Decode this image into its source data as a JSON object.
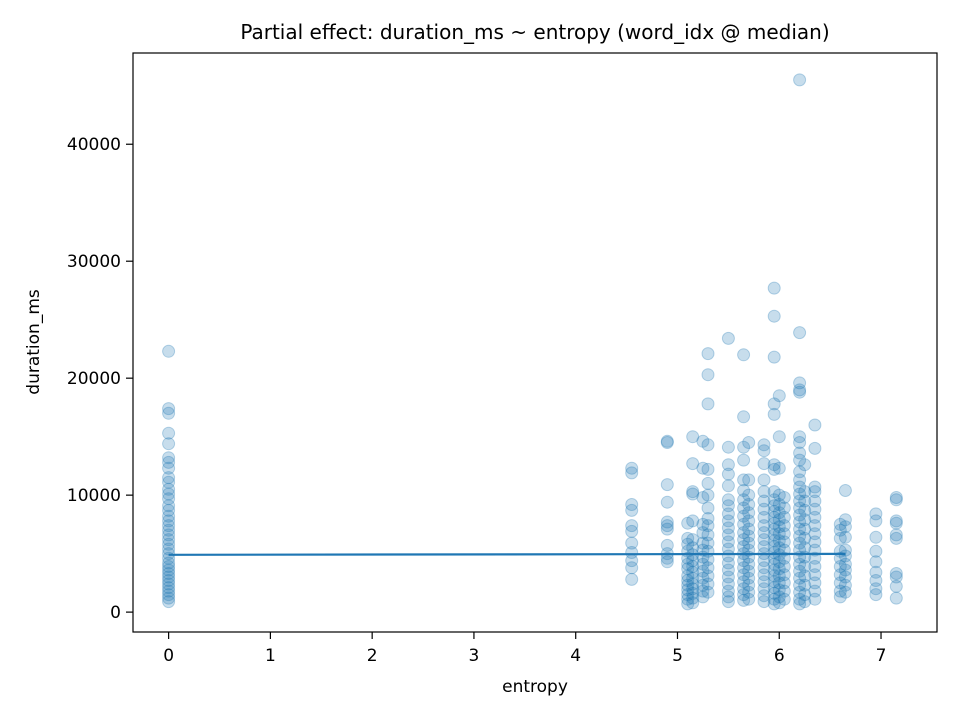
{
  "chart_data": {
    "type": "scatter",
    "title": "Partial effect: duration_ms ~ entropy (word_idx @ median)",
    "xlabel": "entropy",
    "ylabel": "duration_ms",
    "xlim": [
      -0.35,
      7.55
    ],
    "ylim": [
      -1700,
      47800
    ],
    "xticks": [
      "0",
      "1",
      "2",
      "3",
      "4",
      "5",
      "6",
      "7"
    ],
    "yticks": [
      "0",
      "10000",
      "20000",
      "30000",
      "40000"
    ],
    "grid": false,
    "colors": {
      "points": "#1f77b4",
      "fit_line": "#1f77b4"
    },
    "fit_line": {
      "x": [
        0,
        6.65
      ],
      "y": [
        4900,
        4980
      ]
    },
    "columns": [
      {
        "x": 0.0,
        "y": [
          22300,
          17400,
          17000,
          15300,
          14400,
          13200,
          12800,
          12300,
          11500,
          11100,
          10500,
          10100,
          9700,
          9100,
          8700,
          8200,
          7800,
          7400,
          7000,
          6600,
          6200,
          5800,
          5400,
          5000,
          4600,
          4200,
          3900,
          3600,
          3300,
          3000,
          2700,
          2400,
          2100,
          1800,
          1500,
          1200,
          900
        ]
      },
      {
        "x": 4.55,
        "y": [
          12300,
          11900,
          9200,
          8700,
          7400,
          6900,
          5900,
          5100,
          4400,
          3800,
          2800
        ]
      },
      {
        "x": 4.9,
        "y": [
          14600,
          14500,
          10900,
          9400,
          7700,
          7400,
          7100,
          5700,
          5000,
          4600,
          4300
        ]
      },
      {
        "x": 5.1,
        "y": [
          7600,
          6300,
          5800,
          5200,
          4600,
          4100,
          3700,
          3100,
          2700,
          2300,
          1900,
          1500,
          1100,
          700
        ]
      },
      {
        "x": 5.15,
        "y": [
          15000,
          12700,
          10300,
          10100,
          7800,
          6200,
          5500,
          4900,
          4400,
          3900,
          3400,
          2900,
          2400,
          2000,
          1600,
          1200,
          800
        ]
      },
      {
        "x": 5.25,
        "y": [
          14600,
          12300,
          9800,
          7500,
          6800,
          5900,
          5300,
          4700,
          4100,
          3500,
          2900,
          2300,
          1800,
          1300
        ]
      },
      {
        "x": 5.3,
        "y": [
          22100,
          20300,
          17800,
          14300,
          12200,
          11000,
          10000,
          8900,
          8000,
          7400,
          6600,
          5900,
          5200,
          4500,
          3800,
          3100,
          2400,
          1700
        ]
      },
      {
        "x": 5.5,
        "y": [
          23400,
          14100,
          12600,
          11800,
          10800,
          9600,
          9100,
          8400,
          7800,
          7200,
          6600,
          6000,
          5400,
          4800,
          4200,
          3600,
          3000,
          2400,
          1800,
          1300,
          900
        ]
      },
      {
        "x": 5.65,
        "y": [
          22000,
          16700,
          14100,
          13000,
          11300,
          10400,
          9600,
          8900,
          8200,
          7500,
          6800,
          6200,
          5600,
          5000,
          4400,
          3800,
          3200,
          2600,
          2000,
          1500,
          1000
        ]
      },
      {
        "x": 5.7,
        "y": [
          14500,
          11300,
          10000,
          9200,
          8500,
          7800,
          7100,
          6500,
          5900,
          5300,
          4700,
          4100,
          3500,
          2900,
          2300,
          1700,
          1100
        ]
      },
      {
        "x": 5.85,
        "y": [
          14300,
          13800,
          12700,
          11300,
          10300,
          9500,
          8800,
          8100,
          7400,
          6800,
          6200,
          5600,
          5000,
          4400,
          3800,
          3200,
          2600,
          2000,
          1400,
          900
        ]
      },
      {
        "x": 5.95,
        "y": [
          27700,
          25300,
          21800,
          17800,
          16900,
          12600,
          12200,
          10300,
          9600,
          9100,
          8600,
          8100,
          7600,
          7100,
          6600,
          6100,
          5600,
          5100,
          4600,
          4100,
          3600,
          3100,
          2600,
          2100,
          1600,
          1100,
          700
        ]
      },
      {
        "x": 6.0,
        "y": [
          18500,
          15000,
          12300,
          10000,
          9200,
          8500,
          7900,
          7300,
          6700,
          6100,
          5500,
          4900,
          4300,
          3700,
          3100,
          2500,
          1900,
          1300,
          800
        ]
      },
      {
        "x": 6.05,
        "y": [
          9800,
          8900,
          8100,
          7400,
          6700,
          6000,
          5300,
          4600,
          3900,
          3200,
          2500,
          1800,
          1100
        ]
      },
      {
        "x": 6.2,
        "y": [
          45500,
          23900,
          19600,
          19000,
          18800,
          15000,
          14500,
          13600,
          13000,
          12000,
          11300,
          10700,
          10100,
          9500,
          8900,
          8300,
          7700,
          7100,
          6500,
          5900,
          5300,
          4700,
          4100,
          3500,
          2900,
          2300,
          1700,
          1100,
          700
        ]
      },
      {
        "x": 6.25,
        "y": [
          12600,
          10300,
          9500,
          8700,
          7900,
          7100,
          6300,
          5500,
          4700,
          3900,
          3100,
          2300,
          1500,
          900
        ]
      },
      {
        "x": 6.35,
        "y": [
          16000,
          14000,
          10700,
          10300,
          9500,
          8800,
          8100,
          7400,
          6700,
          6000,
          5300,
          4600,
          3900,
          3200,
          2500,
          1800,
          1100
        ]
      },
      {
        "x": 6.6,
        "y": [
          7500,
          7000,
          6300,
          5200,
          4600,
          3900,
          3200,
          2500,
          1800,
          1300
        ]
      },
      {
        "x": 6.65,
        "y": [
          10400,
          7900,
          7300,
          6400,
          5300,
          4800,
          4100,
          3600,
          3000,
          2300,
          1700
        ]
      },
      {
        "x": 6.95,
        "y": [
          8400,
          7800,
          6400,
          5200,
          4300,
          3400,
          2700,
          2000,
          1500
        ]
      },
      {
        "x": 7.15,
        "y": [
          9800,
          9600,
          7800,
          7600,
          6600,
          6300,
          3300,
          3000,
          2200,
          1200
        ]
      }
    ]
  }
}
